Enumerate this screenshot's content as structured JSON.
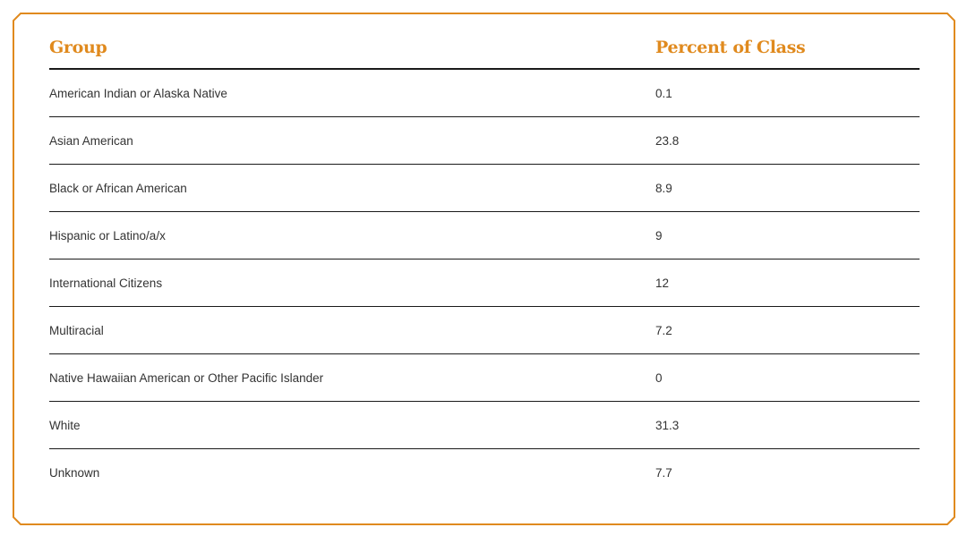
{
  "table": {
    "headers": {
      "group": "Group",
      "percent": "Percent of Class"
    },
    "rows": [
      {
        "group": "American Indian or Alaska Native",
        "percent": "0.1"
      },
      {
        "group": "Asian American",
        "percent": "23.8"
      },
      {
        "group": "Black or African American",
        "percent": "8.9"
      },
      {
        "group": "Hispanic or Latino/a/x",
        "percent": "9"
      },
      {
        "group": "International Citizens",
        "percent": "12"
      },
      {
        "group": "Multiracial",
        "percent": "7.2"
      },
      {
        "group": "Native Hawaiian American or Other Pacific Islander",
        "percent": "0"
      },
      {
        "group": "White",
        "percent": "31.3"
      },
      {
        "group": "Unknown",
        "percent": "7.7"
      }
    ]
  },
  "colors": {
    "accent": "#e08a1e",
    "rule": "#1a1a1a",
    "text": "#333333"
  }
}
